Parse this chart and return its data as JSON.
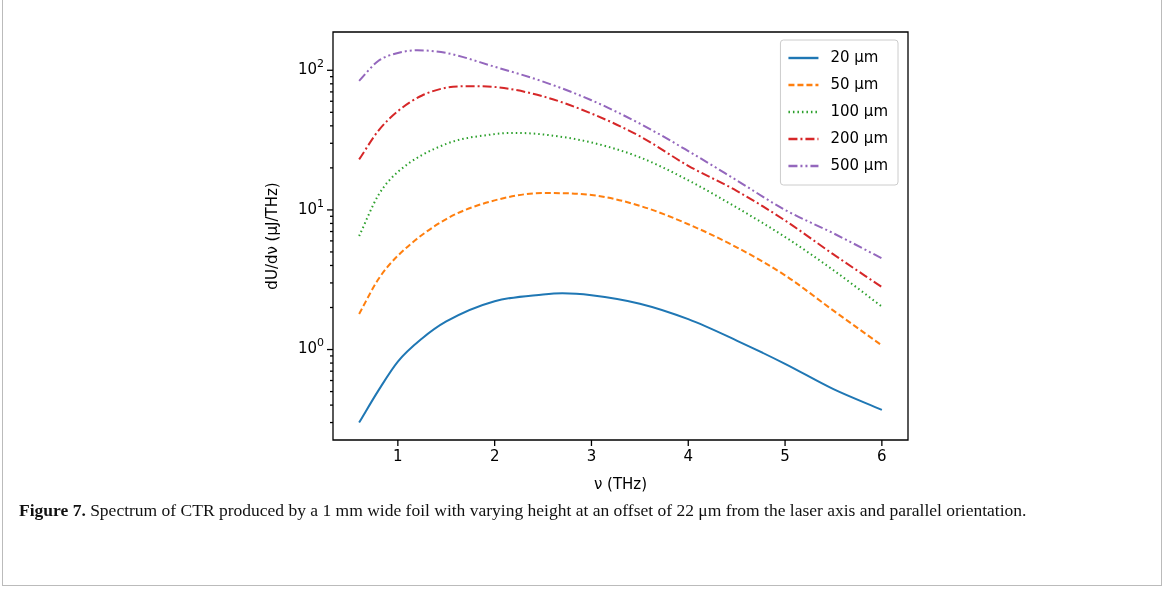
{
  "chart_data": {
    "type": "line",
    "xlabel": "ν (THz)",
    "ylabel": "dU/dν (μJ/THz)",
    "log": "y",
    "legend": "top right",
    "grid": false,
    "marker": "none",
    "xlim": [
      0.33,
      6.27
    ],
    "xticks": [
      1,
      2,
      3,
      4,
      5,
      6
    ],
    "ylim": [
      0.225,
      188
    ],
    "yticks": [
      {
        "value": 0.3,
        "label": null
      },
      {
        "value": 0.4,
        "label": null
      },
      {
        "value": 0.5,
        "label": null
      },
      {
        "value": 0.6,
        "label": null
      },
      {
        "value": 0.7,
        "label": null
      },
      {
        "value": 0.8,
        "label": null
      },
      {
        "value": 0.9,
        "label": null
      },
      {
        "value": 1,
        "label": "10$^{0}$"
      },
      {
        "value": 2,
        "label": null
      },
      {
        "value": 3,
        "label": null
      },
      {
        "value": 4,
        "label": null
      },
      {
        "value": 5,
        "label": null
      },
      {
        "value": 6,
        "label": null
      },
      {
        "value": 7,
        "label": null
      },
      {
        "value": 8,
        "label": null
      },
      {
        "value": 9,
        "label": null
      },
      {
        "value": 10,
        "label": "10$^{1}$"
      },
      {
        "value": 20,
        "label": null
      },
      {
        "value": 30,
        "label": null
      },
      {
        "value": 40,
        "label": null
      },
      {
        "value": 50,
        "label": null
      },
      {
        "value": 60,
        "label": null
      },
      {
        "value": 70,
        "label": null
      },
      {
        "value": 80,
        "label": null
      },
      {
        "value": 90,
        "label": null
      },
      {
        "value": 100,
        "label": "10$^{2}$"
      }
    ],
    "series": [
      {
        "name": "20 μm",
        "color": "#1f77b4",
        "line_style": "solid",
        "x": [
          0.6,
          0.8,
          1,
          1.25,
          1.5,
          2,
          2.5,
          2.7,
          3,
          3.5,
          4,
          4.5,
          5,
          5.5,
          6
        ],
        "values": [
          0.3,
          0.51,
          0.82,
          1.2,
          1.59,
          2.22,
          2.48,
          2.53,
          2.45,
          2.13,
          1.65,
          1.16,
          0.79,
          0.52,
          0.37
        ]
      },
      {
        "name": "50 μm",
        "color": "#ff7f0e",
        "line_style": "dashed",
        "x": [
          0.6,
          0.8,
          1,
          1.5,
          2,
          2.5,
          3,
          3.5,
          4,
          4.5,
          5,
          5.5,
          6
        ],
        "values": [
          1.8,
          3.2,
          4.7,
          8.6,
          11.7,
          13.2,
          12.8,
          10.7,
          7.9,
          5.4,
          3.4,
          1.9,
          1.07
        ]
      },
      {
        "name": "100 μm",
        "color": "#2ca02c",
        "line_style": "dotted",
        "x": [
          0.6,
          0.8,
          1,
          1.5,
          2,
          2.2,
          2.5,
          3,
          3.5,
          4,
          4.5,
          5,
          5.5,
          6
        ],
        "values": [
          6.5,
          12.8,
          18.7,
          29.7,
          34.9,
          35.6,
          34.7,
          30.4,
          23.8,
          16.3,
          10.4,
          6.4,
          3.7,
          2.03
        ]
      },
      {
        "name": "200 μm",
        "color": "#d62728",
        "line_style": "dashdot",
        "x": [
          0.6,
          0.8,
          1,
          1.25,
          1.5,
          1.75,
          2,
          2.5,
          3,
          3.5,
          4,
          4.5,
          5,
          5.5,
          6
        ],
        "values": [
          23,
          37,
          51,
          66,
          75,
          77,
          76,
          65,
          49,
          33.7,
          20.7,
          13.7,
          8.4,
          4.8,
          2.8
        ]
      },
      {
        "name": "500 μm",
        "color": "#9467bd",
        "line_style": "dashdotdot",
        "x": [
          0.6,
          0.8,
          1,
          1.2,
          1.5,
          2,
          2.5,
          3,
          3.5,
          4,
          4.5,
          5,
          5.5,
          6
        ],
        "values": [
          84,
          117,
          133,
          139,
          133,
          106,
          83,
          61,
          41.5,
          26.4,
          16.3,
          10,
          6.8,
          4.5
        ]
      }
    ],
    "annotations": [
      "Figure 7. Spectrum of CTR produced by a 1  mm wide foil with varying height at an offset of 22  μm from the laser axis and parallel orientation."
    ]
  }
}
